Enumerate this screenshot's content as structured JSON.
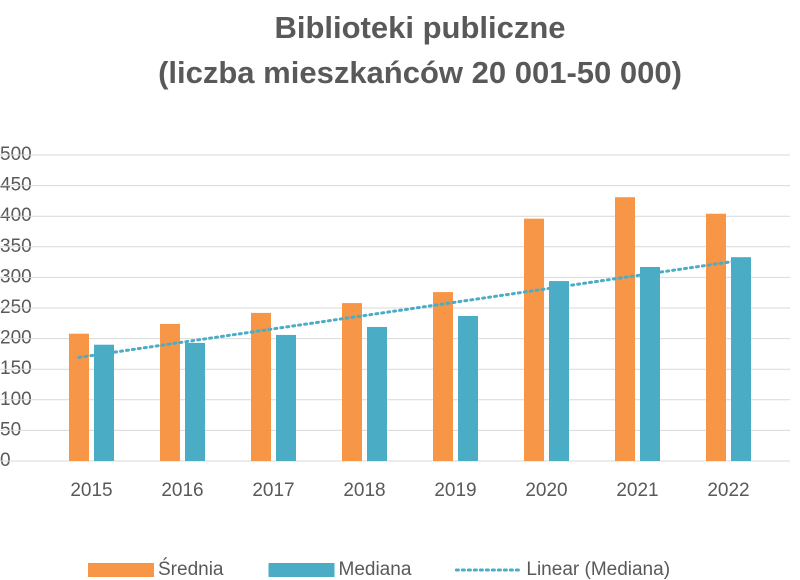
{
  "chart_data": {
    "type": "bar",
    "title": [
      "Biblioteki publiczne",
      "(liczba mieszkańców 20 001-50 000)"
    ],
    "categories": [
      "2015",
      "2016",
      "2017",
      "2018",
      "2019",
      "2020",
      "2021",
      "2022"
    ],
    "series": [
      {
        "name": "Średnia",
        "color": "#f79646",
        "values": [
          208,
          224,
          242,
          258,
          276,
          396,
          431,
          404
        ]
      },
      {
        "name": "Mediana",
        "color": "#4bacc6",
        "values": [
          190,
          193,
          206,
          219,
          237,
          294,
          317,
          333
        ]
      }
    ],
    "trendline": {
      "name": "Linear (Mediana)",
      "series": 1,
      "kind": "linear",
      "color": "#4bacc6",
      "dash": "dotted"
    },
    "ylim": [
      0,
      500
    ],
    "yticks": [
      0,
      50,
      100,
      150,
      200,
      250,
      300,
      350,
      400,
      450,
      500
    ],
    "grid": true,
    "legend": "bottom"
  }
}
